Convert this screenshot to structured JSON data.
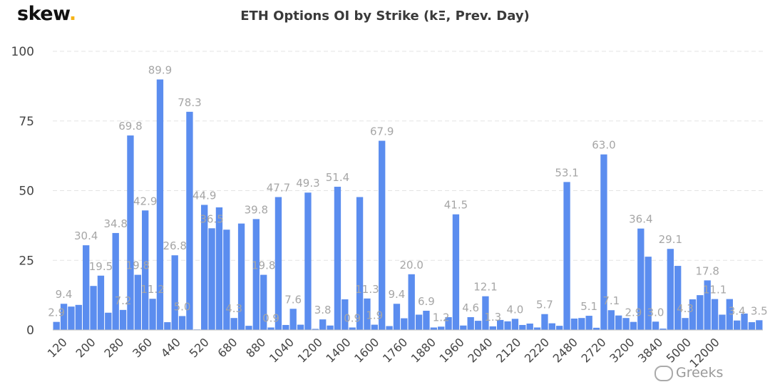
{
  "header": {
    "logo_text": "skew",
    "logo_dot": ".",
    "title": "ETH Options OI by Strike (kΞ, Prev. Day)"
  },
  "watermark": {
    "text": "Greeks",
    "icon": "wechat-icon"
  },
  "colors": {
    "bar": "#5b8def",
    "label": "#a6a6a6",
    "grid": "#e3e3e3",
    "axis_text": "#444444",
    "accent": "#f5b316"
  },
  "chart_data": {
    "type": "bar",
    "title": "ETH Options OI by Strike (kΞ, Prev. Day)",
    "ylim": [
      0,
      100
    ],
    "yticks": [
      0,
      25,
      50,
      75,
      100
    ],
    "grid": true,
    "x_tick_labels": [
      "120",
      "200",
      "280",
      "360",
      "440",
      "520",
      "680",
      "880",
      "1040",
      "1200",
      "1400",
      "1600",
      "1760",
      "1880",
      "1960",
      "2040",
      "2120",
      "2220",
      "2480",
      "2720",
      "3200",
      "3840",
      "5000",
      "12000"
    ],
    "values": [
      2.9,
      9.4,
      8.4,
      9.0,
      30.4,
      15.8,
      19.5,
      6.2,
      34.8,
      7.2,
      69.8,
      19.8,
      42.9,
      11.2,
      89.9,
      2.8,
      26.8,
      5.0,
      78.3,
      0.2,
      44.9,
      36.5,
      44.0,
      36.0,
      4.3,
      38.2,
      1.5,
      39.8,
      19.8,
      0.9,
      47.7,
      1.8,
      7.6,
      1.9,
      49.3,
      0.4,
      3.8,
      1.6,
      51.4,
      11.0,
      0.9,
      47.7,
      11.3,
      1.9,
      67.9,
      1.4,
      9.4,
      4.2,
      20.0,
      5.5,
      6.9,
      0.9,
      1.2,
      4.6,
      41.5,
      1.6,
      4.6,
      3.3,
      12.1,
      1.3,
      3.6,
      3.1,
      4.0,
      1.8,
      2.3,
      0.9,
      5.7,
      2.4,
      1.5,
      53.1,
      4.1,
      4.3,
      5.1,
      0.8,
      63.0,
      7.1,
      5.2,
      4.3,
      2.9,
      36.4,
      26.3,
      3.0,
      0.5,
      29.1,
      23.0,
      4.3,
      11.0,
      12.5,
      17.8,
      11.1,
      5.5,
      11.1,
      3.4,
      5.9,
      2.8,
      3.5
    ],
    "data_labels": [
      {
        "i": 0,
        "text": "2.9"
      },
      {
        "i": 1,
        "text": "9.4"
      },
      {
        "i": 4,
        "text": "30.4"
      },
      {
        "i": 6,
        "text": "19.5"
      },
      {
        "i": 8,
        "text": "34.8"
      },
      {
        "i": 9,
        "text": "7.2"
      },
      {
        "i": 10,
        "text": "69.8"
      },
      {
        "i": 11,
        "text": "19.8"
      },
      {
        "i": 12,
        "text": "42.9"
      },
      {
        "i": 13,
        "text": "11.2"
      },
      {
        "i": 14,
        "text": "89.9"
      },
      {
        "i": 16,
        "text": "26.8"
      },
      {
        "i": 17,
        "text": "5.0"
      },
      {
        "i": 18,
        "text": "78.3"
      },
      {
        "i": 20,
        "text": "44.9"
      },
      {
        "i": 21,
        "text": "36.5"
      },
      {
        "i": 24,
        "text": "4.3"
      },
      {
        "i": 27,
        "text": "39.8"
      },
      {
        "i": 28,
        "text": "19.8"
      },
      {
        "i": 29,
        "text": "0.9"
      },
      {
        "i": 30,
        "text": "47.7"
      },
      {
        "i": 32,
        "text": "7.6"
      },
      {
        "i": 34,
        "text": "49.3"
      },
      {
        "i": 36,
        "text": "3.8"
      },
      {
        "i": 38,
        "text": "51.4"
      },
      {
        "i": 40,
        "text": "0.9"
      },
      {
        "i": 42,
        "text": "11.3"
      },
      {
        "i": 43,
        "text": "1.9"
      },
      {
        "i": 44,
        "text": "67.9"
      },
      {
        "i": 46,
        "text": "9.4"
      },
      {
        "i": 48,
        "text": "20.0"
      },
      {
        "i": 50,
        "text": "6.9"
      },
      {
        "i": 52,
        "text": "1.2"
      },
      {
        "i": 54,
        "text": "41.5"
      },
      {
        "i": 56,
        "text": "4.6"
      },
      {
        "i": 58,
        "text": "12.1"
      },
      {
        "i": 59,
        "text": "1.3"
      },
      {
        "i": 62,
        "text": "4.0"
      },
      {
        "i": 66,
        "text": "5.7"
      },
      {
        "i": 69,
        "text": "53.1"
      },
      {
        "i": 72,
        "text": "5.1"
      },
      {
        "i": 74,
        "text": "63.0"
      },
      {
        "i": 75,
        "text": "7.1"
      },
      {
        "i": 78,
        "text": "2.9"
      },
      {
        "i": 79,
        "text": "36.4"
      },
      {
        "i": 81,
        "text": "3.0"
      },
      {
        "i": 83,
        "text": "29.1"
      },
      {
        "i": 85,
        "text": "4.3"
      },
      {
        "i": 88,
        "text": "17.8"
      },
      {
        "i": 89,
        "text": "11.1"
      },
      {
        "i": 92,
        "text": "3.4"
      },
      {
        "i": 95,
        "text": "3.5"
      }
    ]
  }
}
